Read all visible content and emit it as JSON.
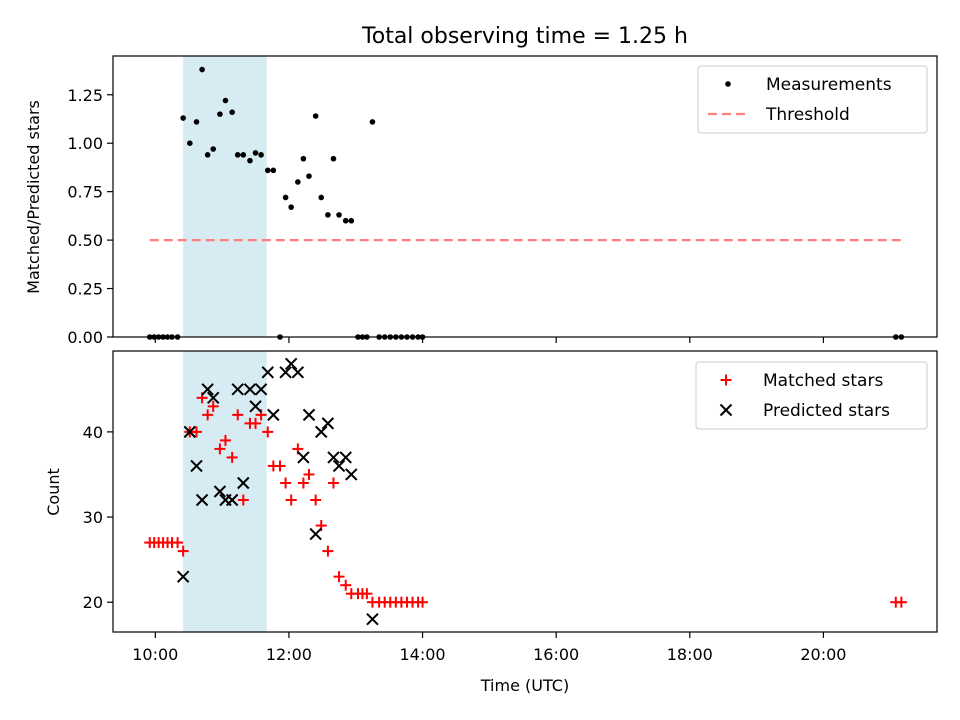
{
  "title": "Total observing time = 1.25 h",
  "colors": {
    "measurements": "#000000",
    "threshold": "#ff7f7f",
    "matched": "#ff0000",
    "predicted": "#000000",
    "highlight": "#add8e6"
  },
  "chart_data": [
    {
      "type": "scatter",
      "ylabel": "Matched/Predicted stars",
      "xlim": [
        "09:22",
        "21:42"
      ],
      "ylim": [
        0,
        1.45
      ],
      "x_axis": "time",
      "x_ticks": [
        "10:00",
        "12:00",
        "14:00",
        "16:00",
        "18:00",
        "20:00"
      ],
      "y_ticks": [
        "0.00",
        "0.25",
        "0.50",
        "0.75",
        "1.00",
        "1.25"
      ],
      "y_tick_values": [
        0,
        0.25,
        0.5,
        0.75,
        1.0,
        1.25
      ],
      "shaded_span": [
        "10:25",
        "11:40"
      ],
      "legend_position": "upper right",
      "legend": [
        "Measurements",
        "Threshold"
      ],
      "series": [
        {
          "name": "Measurements",
          "marker": "dot",
          "points": [
            [
              "09:55",
              0
            ],
            [
              "09:59",
              0
            ],
            [
              "10:03",
              0
            ],
            [
              "10:07",
              0
            ],
            [
              "10:11",
              0
            ],
            [
              "10:15",
              0
            ],
            [
              "10:20",
              0
            ],
            [
              "10:25",
              1.13
            ],
            [
              "10:31",
              1.0
            ],
            [
              "10:37",
              1.11
            ],
            [
              "10:42",
              1.38
            ],
            [
              "10:47",
              0.94
            ],
            [
              "10:52",
              0.97
            ],
            [
              "10:58",
              1.15
            ],
            [
              "11:03",
              1.22
            ],
            [
              "11:09",
              1.16
            ],
            [
              "11:14",
              0.94
            ],
            [
              "11:19",
              0.94
            ],
            [
              "11:25",
              0.91
            ],
            [
              "11:30",
              0.95
            ],
            [
              "11:35",
              0.94
            ],
            [
              "11:41",
              0.86
            ],
            [
              "11:46",
              0.86
            ],
            [
              "11:52",
              0
            ],
            [
              "11:57",
              0.72
            ],
            [
              "12:02",
              0.67
            ],
            [
              "12:08",
              0.8
            ],
            [
              "12:13",
              0.92
            ],
            [
              "12:18",
              0.83
            ],
            [
              "12:24",
              1.14
            ],
            [
              "12:29",
              0.72
            ],
            [
              "12:35",
              0.63
            ],
            [
              "12:40",
              0.92
            ],
            [
              "12:45",
              0.63
            ],
            [
              "12:51",
              0.6
            ],
            [
              "12:56",
              0.6
            ],
            [
              "13:02",
              0
            ],
            [
              "13:06",
              0
            ],
            [
              "13:10",
              0
            ],
            [
              "13:15",
              1.11
            ],
            [
              "13:21",
              0
            ],
            [
              "13:26",
              0
            ],
            [
              "13:31",
              0
            ],
            [
              "13:36",
              0
            ],
            [
              "13:41",
              0
            ],
            [
              "13:46",
              0
            ],
            [
              "13:51",
              0
            ],
            [
              "13:56",
              0
            ],
            [
              "14:00",
              0
            ],
            [
              "21:05",
              0
            ],
            [
              "21:10",
              0
            ]
          ]
        },
        {
          "name": "Threshold",
          "style": "dashed",
          "points": [
            [
              "09:55",
              0.5
            ],
            [
              "21:10",
              0.5
            ]
          ]
        }
      ]
    },
    {
      "type": "scatter",
      "ylabel": "Count",
      "xlabel": "Time (UTC)",
      "xlim": [
        "09:22",
        "21:42"
      ],
      "ylim": [
        16.5,
        49.5
      ],
      "x_axis": "time",
      "x_ticks": [
        "10:00",
        "12:00",
        "14:00",
        "16:00",
        "18:00",
        "20:00"
      ],
      "y_ticks": [
        "20",
        "30",
        "40"
      ],
      "y_tick_values": [
        20,
        30,
        40
      ],
      "shaded_span": [
        "10:25",
        "11:40"
      ],
      "legend_position": "upper right",
      "legend": [
        "Matched stars",
        "Predicted stars"
      ],
      "series": [
        {
          "name": "Matched stars",
          "marker": "plus",
          "points": [
            [
              "09:55",
              27
            ],
            [
              "09:59",
              27
            ],
            [
              "10:03",
              27
            ],
            [
              "10:07",
              27
            ],
            [
              "10:11",
              27
            ],
            [
              "10:15",
              27
            ],
            [
              "10:20",
              27
            ],
            [
              "10:25",
              26
            ],
            [
              "10:31",
              40
            ],
            [
              "10:37",
              40
            ],
            [
              "10:42",
              44
            ],
            [
              "10:47",
              42
            ],
            [
              "10:52",
              43
            ],
            [
              "10:58",
              38
            ],
            [
              "11:03",
              39
            ],
            [
              "11:09",
              37
            ],
            [
              "11:14",
              42
            ],
            [
              "11:19",
              32
            ],
            [
              "11:25",
              41
            ],
            [
              "11:30",
              41
            ],
            [
              "11:35",
              42
            ],
            [
              "11:41",
              40
            ],
            [
              "11:46",
              36
            ],
            [
              "11:52",
              36
            ],
            [
              "11:57",
              34
            ],
            [
              "12:02",
              32
            ],
            [
              "12:08",
              38
            ],
            [
              "12:13",
              34
            ],
            [
              "12:18",
              35
            ],
            [
              "12:24",
              32
            ],
            [
              "12:29",
              29
            ],
            [
              "12:35",
              26
            ],
            [
              "12:40",
              34
            ],
            [
              "12:45",
              23
            ],
            [
              "12:51",
              22
            ],
            [
              "12:56",
              21
            ],
            [
              "13:02",
              21
            ],
            [
              "13:06",
              21
            ],
            [
              "13:10",
              21
            ],
            [
              "13:15",
              20
            ],
            [
              "13:21",
              20
            ],
            [
              "13:26",
              20
            ],
            [
              "13:31",
              20
            ],
            [
              "13:36",
              20
            ],
            [
              "13:41",
              20
            ],
            [
              "13:46",
              20
            ],
            [
              "13:51",
              20
            ],
            [
              "13:56",
              20
            ],
            [
              "14:00",
              20
            ],
            [
              "21:05",
              20
            ],
            [
              "21:10",
              20
            ]
          ]
        },
        {
          "name": "Predicted stars",
          "marker": "x",
          "points": [
            [
              "10:25",
              23
            ],
            [
              "10:31",
              40
            ],
            [
              "10:37",
              36
            ],
            [
              "10:42",
              32
            ],
            [
              "10:47",
              45
            ],
            [
              "10:52",
              44
            ],
            [
              "10:58",
              33
            ],
            [
              "11:03",
              32
            ],
            [
              "11:09",
              32
            ],
            [
              "11:14",
              45
            ],
            [
              "11:19",
              34
            ],
            [
              "11:25",
              45
            ],
            [
              "11:30",
              43
            ],
            [
              "11:35",
              45
            ],
            [
              "11:41",
              47
            ],
            [
              "11:46",
              42
            ],
            [
              "11:57",
              47
            ],
            [
              "12:02",
              48
            ],
            [
              "12:08",
              47
            ],
            [
              "12:13",
              37
            ],
            [
              "12:18",
              42
            ],
            [
              "12:24",
              28
            ],
            [
              "12:29",
              40
            ],
            [
              "12:35",
              41
            ],
            [
              "12:40",
              37
            ],
            [
              "12:45",
              36
            ],
            [
              "12:51",
              37
            ],
            [
              "12:56",
              35
            ],
            [
              "13:15",
              18
            ]
          ]
        }
      ]
    }
  ]
}
